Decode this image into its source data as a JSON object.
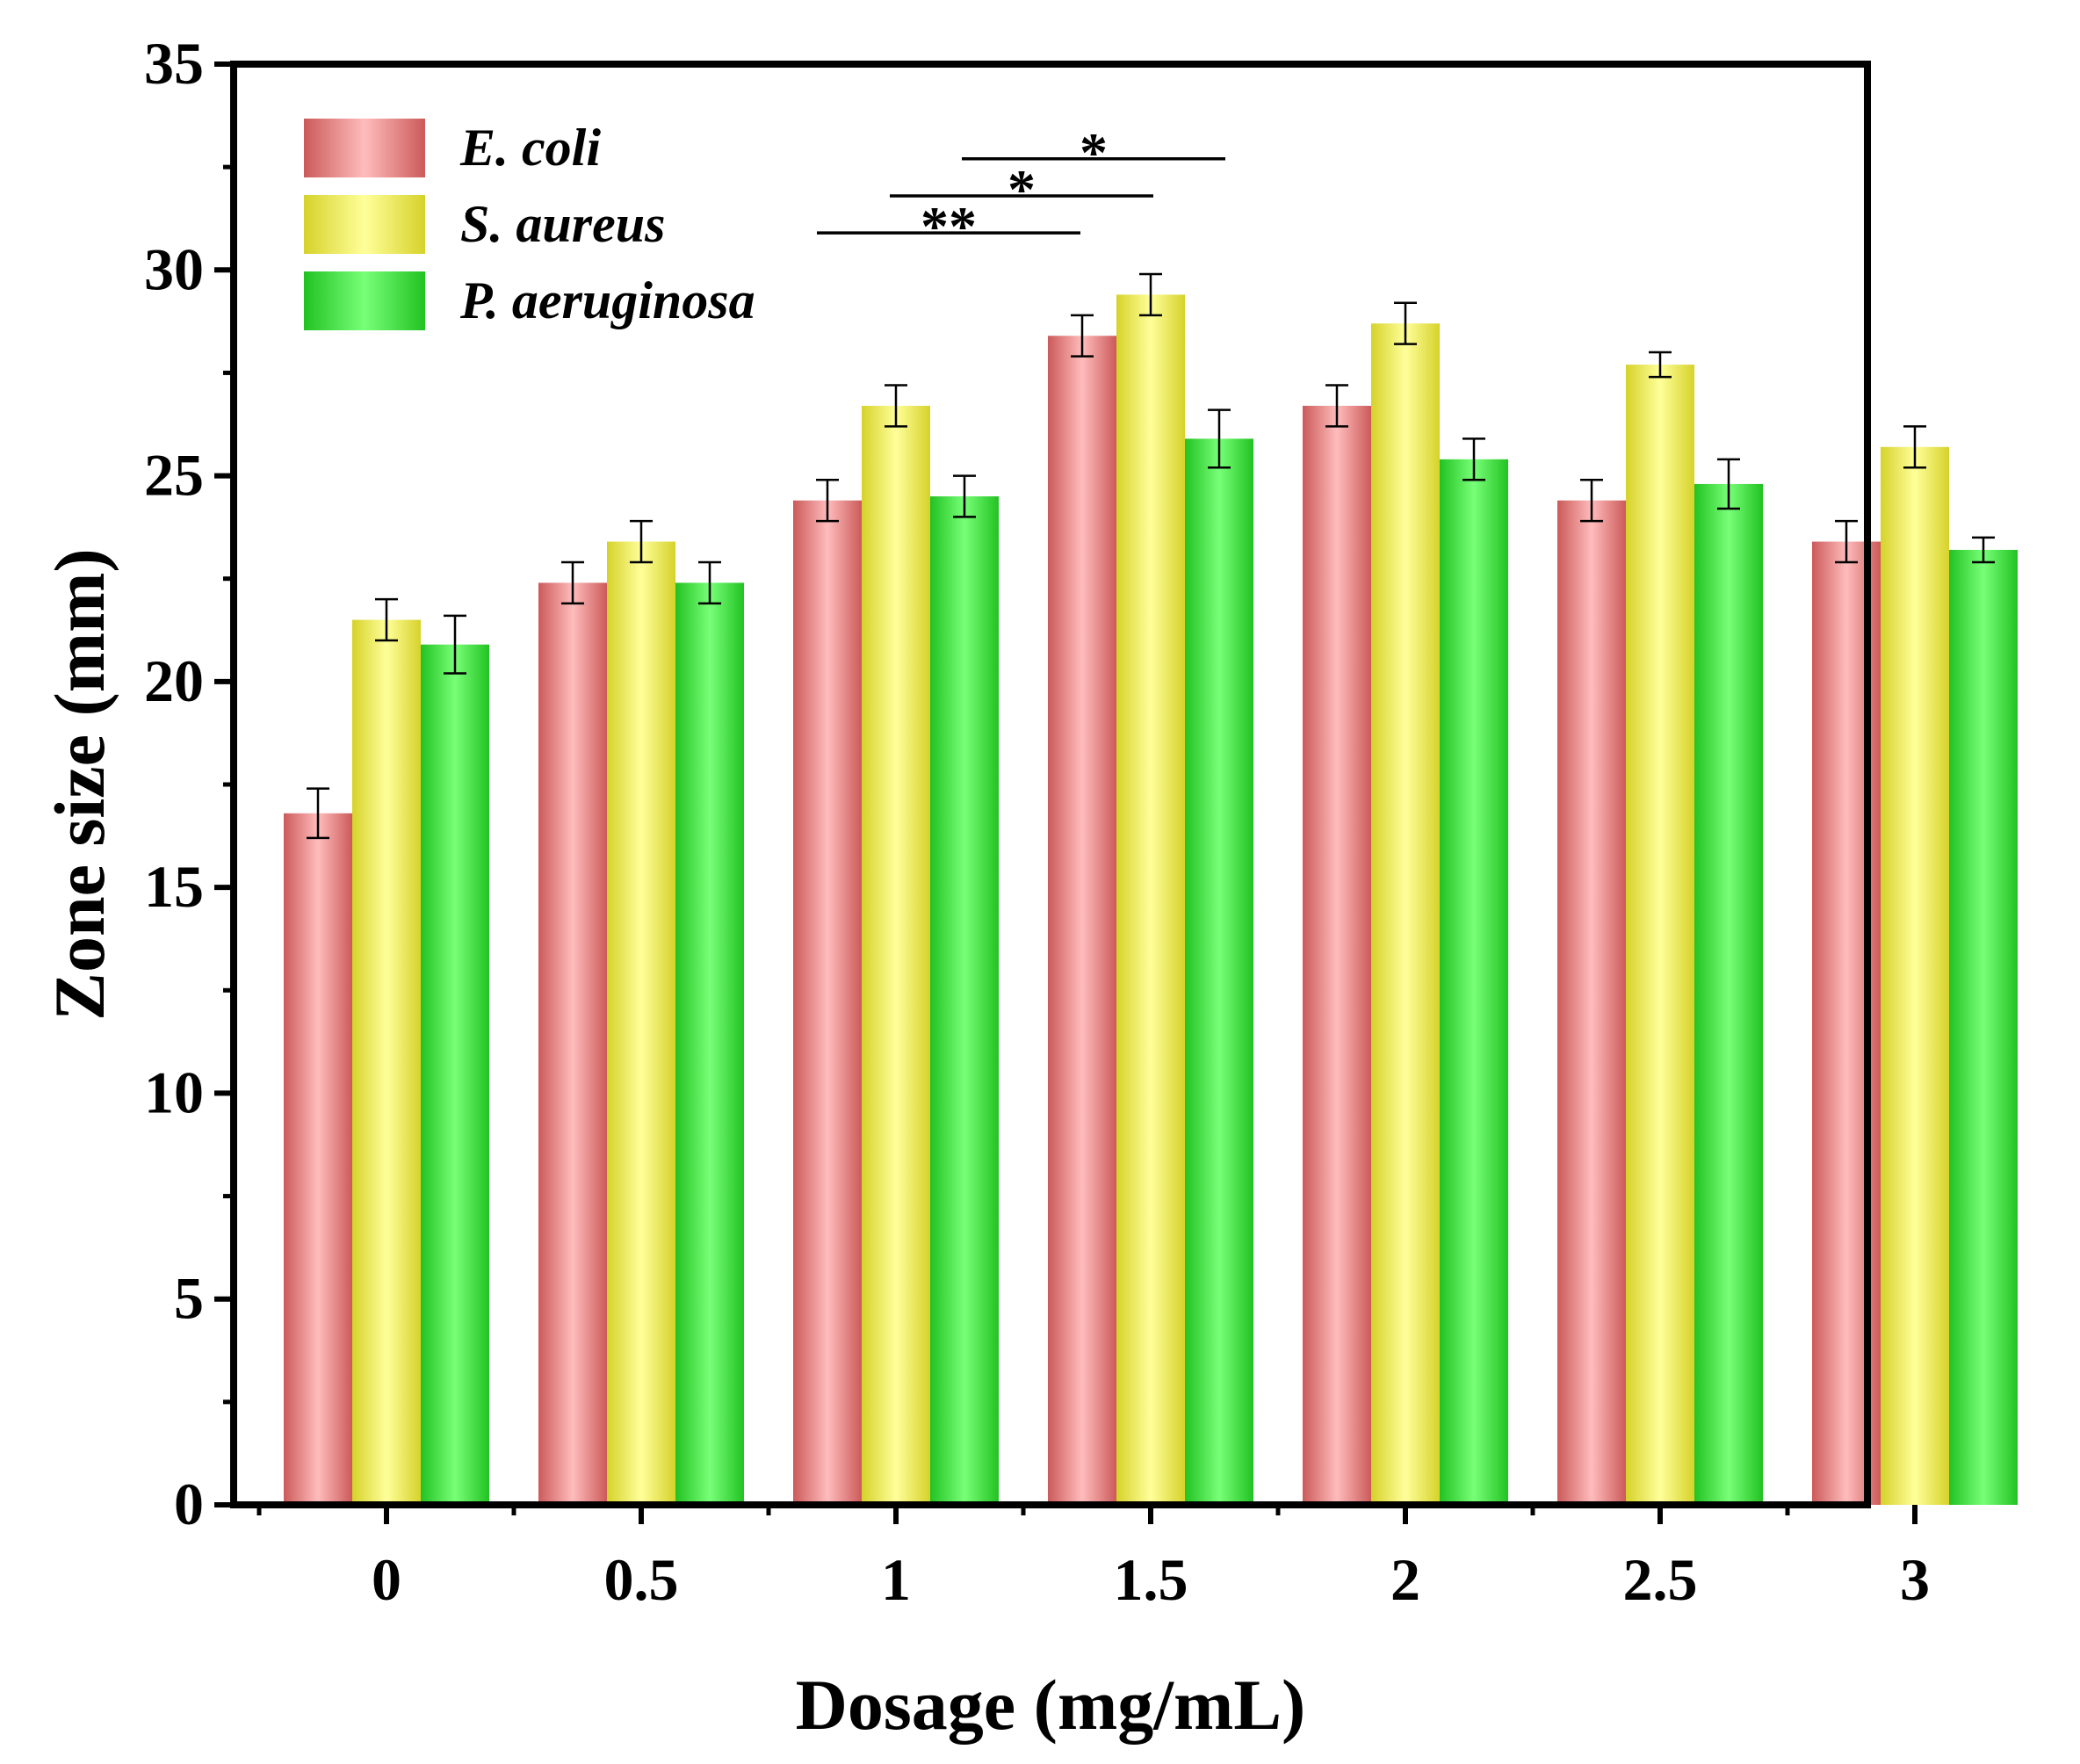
{
  "chart_data": {
    "type": "bar",
    "xlabel": "Dosage (mg/mL)",
    "ylabel": "Zone size (mm)",
    "ylim": [
      0,
      35
    ],
    "yticks": [
      "0",
      "5",
      "10",
      "15",
      "20",
      "25",
      "30",
      "35"
    ],
    "categories": [
      "0",
      "0.5",
      "1",
      "1.5",
      "2",
      "2.5",
      "3"
    ],
    "legend_position": "top-left",
    "series": [
      {
        "name": "E. coli",
        "color_light": "#ffbcbc",
        "color_dark": "#cc5a5a",
        "values": [
          16.8,
          22.4,
          24.4,
          28.4,
          26.7,
          24.4,
          23.4
        ],
        "errors": [
          0.6,
          0.5,
          0.5,
          0.5,
          0.5,
          0.5,
          0.5
        ]
      },
      {
        "name": "S. aureus",
        "color_light": "#ffff9a",
        "color_dark": "#d6d22a",
        "values": [
          21.5,
          23.4,
          26.7,
          29.4,
          28.7,
          27.7,
          25.7
        ],
        "errors": [
          0.5,
          0.5,
          0.5,
          0.5,
          0.5,
          0.3,
          0.5
        ]
      },
      {
        "name": "P. aeruginosa",
        "color_light": "#78ff78",
        "color_dark": "#22c222",
        "values": [
          20.9,
          22.4,
          24.5,
          25.9,
          25.4,
          24.8,
          23.2
        ],
        "errors": [
          0.7,
          0.5,
          0.5,
          0.7,
          0.5,
          0.6,
          0.3
        ]
      }
    ],
    "significance": [
      {
        "label": "**",
        "from": "1",
        "to": "1.5",
        "y": 30.9
      },
      {
        "label": "*",
        "from": "1",
        "to": "1.5",
        "y": 31.8
      },
      {
        "label": "*",
        "from": "1",
        "to": "1.5",
        "y": 32.7
      }
    ]
  }
}
